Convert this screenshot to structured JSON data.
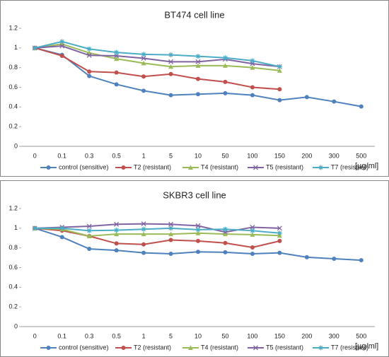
{
  "chart_data": [
    {
      "type": "line",
      "title": "BT474 cell line",
      "xlabel": "[µg/ml]",
      "categories": [
        "0",
        "0.1",
        "0.3",
        "0.5",
        "1",
        "5",
        "10",
        "50",
        "100",
        "150",
        "200",
        "300",
        "500"
      ],
      "ylim": [
        0,
        1.2
      ],
      "yticks": [
        0,
        0.2,
        0.4,
        0.6,
        0.8,
        1,
        1.2
      ],
      "grid": false,
      "legend": "bottom",
      "series": [
        {
          "name": "control (sensitive)",
          "color": "#4f81bd",
          "marker": "circle",
          "values": [
            1,
            0.93,
            0.715,
            0.63,
            0.565,
            0.52,
            0.53,
            0.54,
            0.52,
            0.47,
            0.5,
            0.455,
            0.405
          ]
        },
        {
          "name": "T2 (resistant)",
          "color": "#c0504d",
          "marker": "circle",
          "values": [
            1,
            0.92,
            0.76,
            0.75,
            0.71,
            0.735,
            0.685,
            0.655,
            0.6,
            0.58,
            null,
            null,
            null
          ]
        },
        {
          "name": "T4 (resistant)",
          "color": "#9bbb59",
          "marker": "triangle",
          "values": [
            1,
            1.04,
            0.95,
            0.89,
            0.845,
            0.81,
            0.82,
            0.82,
            0.8,
            0.77,
            null,
            null,
            null
          ]
        },
        {
          "name": "T5 (resistant)",
          "color": "#8064a2",
          "marker": "x",
          "values": [
            1,
            1.02,
            0.925,
            0.92,
            0.895,
            0.86,
            0.86,
            0.885,
            0.84,
            0.81,
            null,
            null,
            null
          ]
        },
        {
          "name": "T7 (resistant)",
          "color": "#4bacc6",
          "marker": "star",
          "values": [
            1,
            1.065,
            0.99,
            0.955,
            0.935,
            0.93,
            0.915,
            0.9,
            0.87,
            0.81,
            null,
            null,
            null
          ]
        }
      ]
    },
    {
      "type": "line",
      "title": "SKBR3 cell line",
      "xlabel": "[µg/ml]",
      "categories": [
        "0",
        "0.1",
        "0.3",
        "0.5",
        "1",
        "5",
        "10",
        "50",
        "100",
        "150",
        "200",
        "300",
        "500"
      ],
      "ylim": [
        0,
        1.2
      ],
      "yticks": [
        0,
        0.2,
        0.4,
        0.6,
        0.8,
        1,
        1.2
      ],
      "grid": false,
      "legend": "bottom",
      "series": [
        {
          "name": "control (sensitive)",
          "color": "#4f81bd",
          "marker": "circle",
          "values": [
            1,
            0.91,
            0.79,
            0.775,
            0.75,
            0.74,
            0.76,
            0.755,
            0.74,
            0.75,
            0.705,
            0.69,
            0.675
          ]
        },
        {
          "name": "T2 (resistant)",
          "color": "#c0504d",
          "marker": "circle",
          "values": [
            1,
            0.975,
            0.92,
            0.845,
            0.835,
            0.88,
            0.87,
            0.85,
            0.805,
            0.87,
            null,
            null,
            null
          ]
        },
        {
          "name": "T4 (resistant)",
          "color": "#9bbb59",
          "marker": "triangle",
          "values": [
            1,
            0.99,
            0.92,
            0.94,
            0.94,
            0.94,
            0.95,
            0.94,
            0.935,
            0.925,
            null,
            null,
            null
          ]
        },
        {
          "name": "T5 (resistant)",
          "color": "#8064a2",
          "marker": "x",
          "values": [
            1,
            1.01,
            1.02,
            1.04,
            1.045,
            1.04,
            1.025,
            0.96,
            1.01,
            1.0,
            null,
            null,
            null
          ]
        },
        {
          "name": "T7 (resistant)",
          "color": "#4bacc6",
          "marker": "star",
          "values": [
            1,
            1.0,
            0.975,
            0.98,
            0.99,
            1.0,
            0.985,
            0.99,
            0.975,
            0.95,
            null,
            null,
            null
          ]
        }
      ]
    }
  ]
}
